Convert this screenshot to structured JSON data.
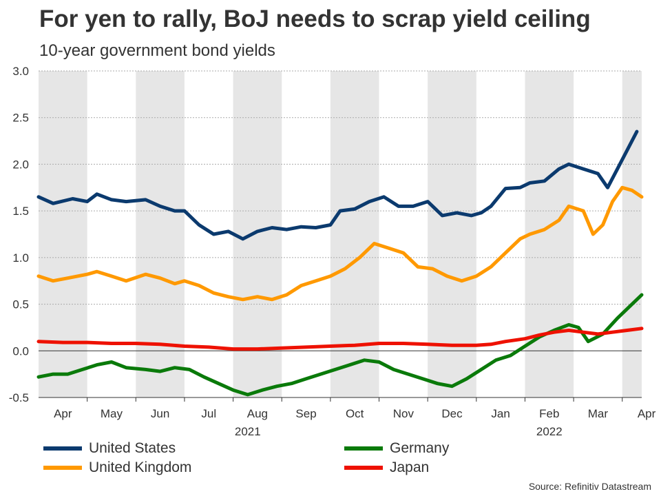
{
  "title": "For yen to rally, BoJ needs to scrap yield ceiling",
  "subtitle": "10-year government bond yields",
  "source": "Source: Refinitiv Datastream",
  "chart_data": {
    "type": "line",
    "title": "For yen to rally, BoJ needs to scrap yield ceiling",
    "ylabel": "10-year government bond yields",
    "ylim": [
      -0.5,
      3.0
    ],
    "yticks": [
      -0.5,
      0.0,
      0.5,
      1.0,
      1.5,
      2.0,
      2.5,
      3.0
    ],
    "ytick_labels": [
      "-0.5",
      "0.0",
      "0.5",
      "1.0",
      "1.5",
      "2.0",
      "2.5",
      "3.0"
    ],
    "xlim": [
      0,
      12.4
    ],
    "month_ticks": [
      "Apr",
      "May",
      "Jun",
      "Jul",
      "Aug",
      "Sep",
      "Oct",
      "Nov",
      "Dec",
      "Jan",
      "Feb",
      "Mar",
      "Apr"
    ],
    "year_labels": [
      {
        "label": "2021",
        "at": 4.3
      },
      {
        "label": "2022",
        "at": 10.5
      }
    ],
    "legend_position": "bottom",
    "series": [
      {
        "name": "United States",
        "color": "#0b3a6e",
        "x": [
          0,
          0.3,
          0.7,
          1.0,
          1.2,
          1.5,
          1.8,
          2.2,
          2.5,
          2.8,
          3.0,
          3.3,
          3.6,
          3.9,
          4.2,
          4.5,
          4.8,
          5.1,
          5.4,
          5.7,
          6.0,
          6.2,
          6.5,
          6.8,
          7.1,
          7.4,
          7.7,
          8.0,
          8.3,
          8.6,
          8.9,
          9.1,
          9.3,
          9.6,
          9.9,
          10.1,
          10.4,
          10.7,
          10.9,
          11.2,
          11.5,
          11.7,
          11.9,
          12.1,
          12.3
        ],
        "values": [
          1.65,
          1.58,
          1.63,
          1.6,
          1.68,
          1.62,
          1.6,
          1.62,
          1.55,
          1.5,
          1.5,
          1.35,
          1.25,
          1.28,
          1.2,
          1.28,
          1.32,
          1.3,
          1.33,
          1.32,
          1.35,
          1.5,
          1.52,
          1.6,
          1.65,
          1.55,
          1.55,
          1.6,
          1.45,
          1.48,
          1.45,
          1.48,
          1.55,
          1.74,
          1.75,
          1.8,
          1.82,
          1.95,
          2.0,
          1.95,
          1.9,
          1.75,
          1.95,
          2.15,
          2.35
        ]
      },
      {
        "name": "United Kingdom",
        "color": "#ff9900",
        "x": [
          0,
          0.3,
          0.6,
          1.0,
          1.2,
          1.5,
          1.8,
          2.2,
          2.5,
          2.8,
          3.0,
          3.3,
          3.6,
          3.9,
          4.2,
          4.5,
          4.8,
          5.1,
          5.4,
          5.7,
          6.0,
          6.3,
          6.6,
          6.9,
          7.2,
          7.5,
          7.8,
          8.1,
          8.4,
          8.7,
          9.0,
          9.3,
          9.6,
          9.9,
          10.1,
          10.4,
          10.7,
          10.9,
          11.2,
          11.4,
          11.6,
          11.8,
          12.0,
          12.2,
          12.4
        ],
        "values": [
          0.8,
          0.75,
          0.78,
          0.82,
          0.85,
          0.8,
          0.75,
          0.82,
          0.78,
          0.72,
          0.75,
          0.7,
          0.62,
          0.58,
          0.55,
          0.58,
          0.55,
          0.6,
          0.7,
          0.75,
          0.8,
          0.88,
          1.0,
          1.15,
          1.1,
          1.05,
          0.9,
          0.88,
          0.8,
          0.75,
          0.8,
          0.9,
          1.05,
          1.2,
          1.25,
          1.3,
          1.4,
          1.55,
          1.5,
          1.25,
          1.35,
          1.6,
          1.75,
          1.72,
          1.65
        ]
      },
      {
        "name": "Germany",
        "color": "#0a7a0a",
        "x": [
          0,
          0.3,
          0.6,
          0.9,
          1.2,
          1.5,
          1.8,
          2.2,
          2.5,
          2.8,
          3.1,
          3.4,
          3.7,
          4.0,
          4.3,
          4.6,
          4.9,
          5.2,
          5.5,
          5.8,
          6.1,
          6.4,
          6.7,
          7.0,
          7.3,
          7.6,
          7.9,
          8.2,
          8.5,
          8.8,
          9.1,
          9.4,
          9.7,
          10.0,
          10.3,
          10.6,
          10.9,
          11.1,
          11.3,
          11.6,
          11.9,
          12.2,
          12.4
        ],
        "values": [
          -0.28,
          -0.25,
          -0.25,
          -0.2,
          -0.15,
          -0.12,
          -0.18,
          -0.2,
          -0.22,
          -0.18,
          -0.2,
          -0.28,
          -0.35,
          -0.42,
          -0.47,
          -0.42,
          -0.38,
          -0.35,
          -0.3,
          -0.25,
          -0.2,
          -0.15,
          -0.1,
          -0.12,
          -0.2,
          -0.25,
          -0.3,
          -0.35,
          -0.38,
          -0.3,
          -0.2,
          -0.1,
          -0.05,
          0.05,
          0.15,
          0.22,
          0.28,
          0.25,
          0.1,
          0.18,
          0.35,
          0.5,
          0.6
        ]
      },
      {
        "name": "Japan",
        "color": "#ee1100",
        "x": [
          0,
          0.5,
          1.0,
          1.5,
          2.0,
          2.5,
          3.0,
          3.5,
          4.0,
          4.5,
          5.0,
          5.5,
          6.0,
          6.5,
          7.0,
          7.5,
          8.0,
          8.5,
          9.0,
          9.3,
          9.6,
          10.0,
          10.3,
          10.6,
          10.9,
          11.2,
          11.5,
          11.8,
          12.1,
          12.4
        ],
        "values": [
          0.1,
          0.09,
          0.09,
          0.08,
          0.08,
          0.07,
          0.05,
          0.04,
          0.02,
          0.02,
          0.03,
          0.04,
          0.05,
          0.06,
          0.08,
          0.08,
          0.07,
          0.06,
          0.06,
          0.07,
          0.1,
          0.13,
          0.17,
          0.2,
          0.22,
          0.2,
          0.18,
          0.2,
          0.22,
          0.24
        ]
      }
    ]
  }
}
